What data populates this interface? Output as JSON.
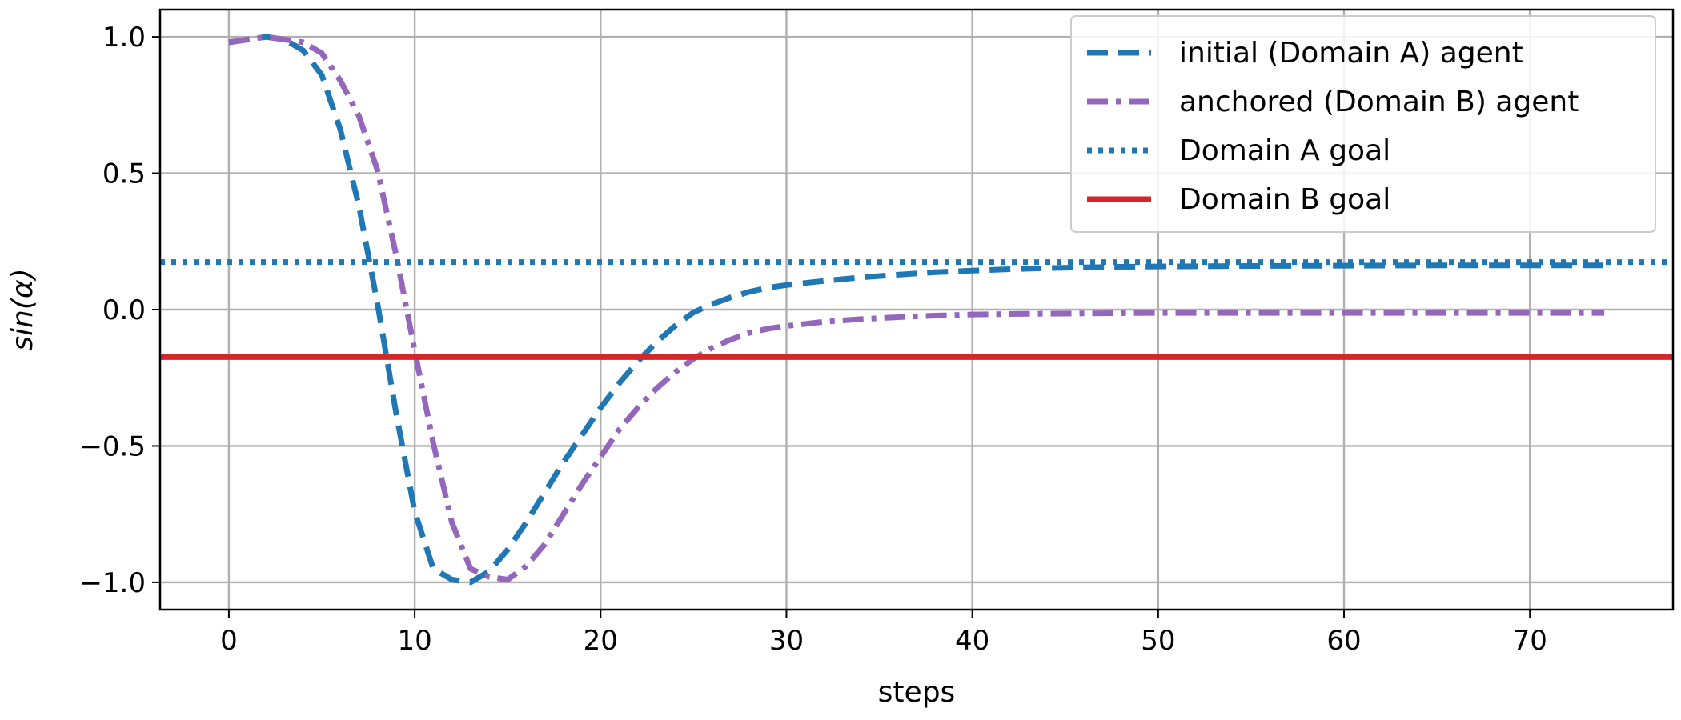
{
  "chart_data": {
    "type": "line",
    "title": "",
    "xlabel": "steps",
    "ylabel": "sin(α)",
    "xlim": [
      -3.7,
      77.7
    ],
    "ylim": [
      -1.1,
      1.1
    ],
    "xticks": [
      0,
      10,
      20,
      30,
      40,
      50,
      60,
      70
    ],
    "yticks": [
      1.0,
      0.5,
      0.0,
      -0.5,
      -1.0
    ],
    "xtick_labels": [
      "0",
      "10",
      "20",
      "30",
      "40",
      "50",
      "60",
      "70"
    ],
    "ytick_labels": [
      "1.0",
      "0.5",
      "0.0",
      "−0.5",
      "−1.0"
    ],
    "grid": true,
    "legend_position": "top-right",
    "series": [
      {
        "name": "initial (Domain A) agent",
        "color": "#1f77b4",
        "linestyle": "dashed",
        "x": [
          0,
          1,
          2,
          3,
          4,
          5,
          6,
          7,
          8,
          9,
          10,
          11,
          12,
          13,
          14,
          15,
          16,
          17,
          18,
          19,
          20,
          21,
          22,
          23,
          24,
          25,
          26,
          27,
          28,
          29,
          30,
          32,
          34,
          36,
          38,
          40,
          42,
          44,
          46,
          48,
          50,
          55,
          60,
          65,
          70,
          74
        ],
        "values": [
          0.98,
          0.99,
          1.0,
          0.99,
          0.95,
          0.86,
          0.66,
          0.38,
          0.02,
          -0.38,
          -0.74,
          -0.95,
          -0.99,
          -1.0,
          -0.96,
          -0.88,
          -0.78,
          -0.67,
          -0.56,
          -0.46,
          -0.36,
          -0.27,
          -0.19,
          -0.12,
          -0.06,
          -0.01,
          0.02,
          0.045,
          0.065,
          0.08,
          0.09,
          0.105,
          0.118,
          0.128,
          0.137,
          0.143,
          0.148,
          0.152,
          0.155,
          0.157,
          0.158,
          0.16,
          0.161,
          0.162,
          0.162,
          0.162
        ]
      },
      {
        "name": "anchored (Domain B) agent",
        "color": "#9467bd",
        "linestyle": "dashdot",
        "x": [
          0,
          1,
          2,
          3,
          4,
          5,
          6,
          7,
          8,
          9,
          10,
          11,
          12,
          13,
          14,
          15,
          16,
          17,
          18,
          19,
          20,
          21,
          22,
          23,
          24,
          25,
          26,
          27,
          28,
          29,
          30,
          32,
          34,
          36,
          38,
          40,
          42,
          44,
          46,
          48,
          50,
          55,
          60,
          65,
          70,
          74
        ],
        "values": [
          0.98,
          0.99,
          1.0,
          0.99,
          0.98,
          0.94,
          0.84,
          0.71,
          0.51,
          0.2,
          -0.15,
          -0.49,
          -0.78,
          -0.95,
          -0.98,
          -0.99,
          -0.94,
          -0.86,
          -0.75,
          -0.64,
          -0.54,
          -0.44,
          -0.36,
          -0.29,
          -0.23,
          -0.18,
          -0.14,
          -0.11,
          -0.085,
          -0.07,
          -0.06,
          -0.045,
          -0.035,
          -0.028,
          -0.022,
          -0.018,
          -0.016,
          -0.015,
          -0.014,
          -0.013,
          -0.012,
          -0.012,
          -0.012,
          -0.012,
          -0.012,
          -0.012
        ]
      },
      {
        "name": "Domain A goal",
        "color": "#1f77b4",
        "linestyle": "dotted",
        "hline": 0.174
      },
      {
        "name": "Domain B goal",
        "color": "#d62728",
        "linestyle": "solid",
        "hline": -0.174
      }
    ]
  }
}
